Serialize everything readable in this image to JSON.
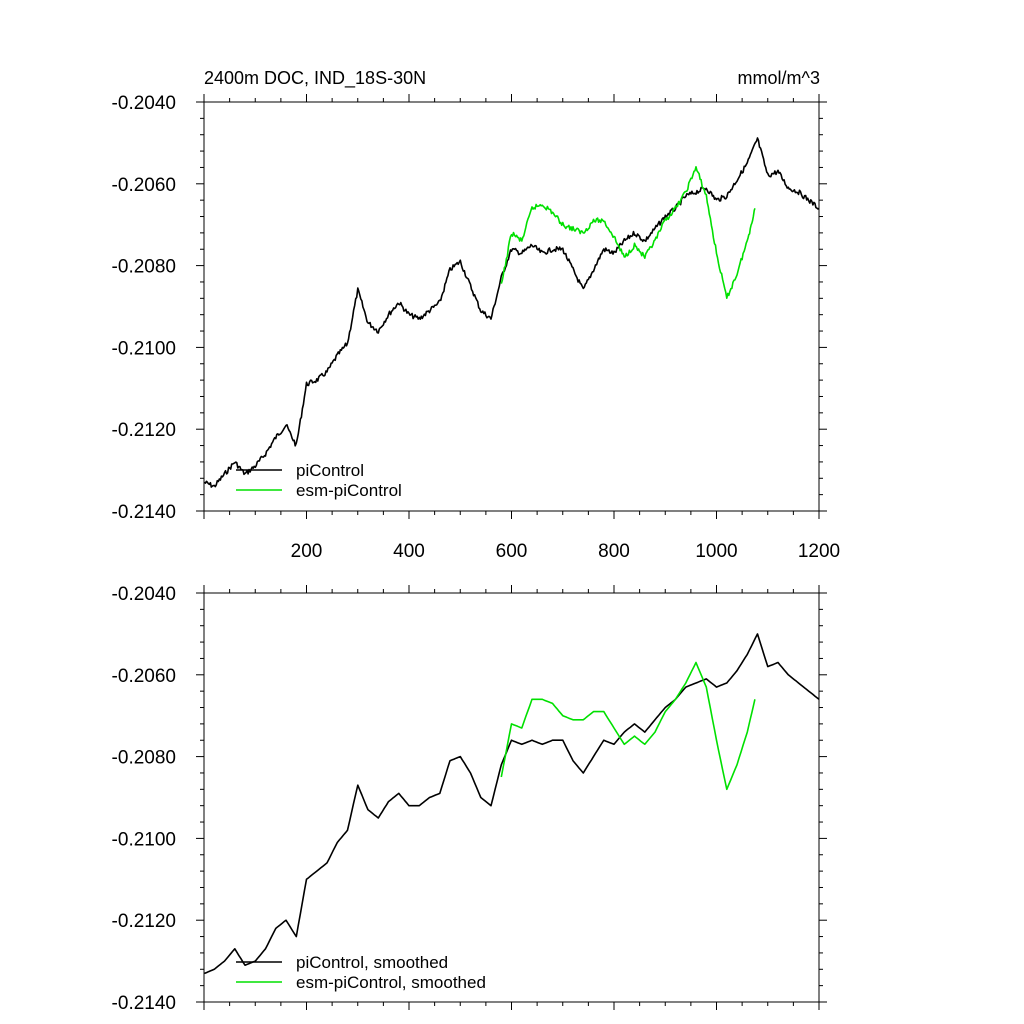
{
  "chart_data": [
    {
      "type": "line",
      "title": "2400m DOC, IND_18S-30N",
      "units": "mmol/m^3",
      "xlabel": "",
      "ylabel": "",
      "xlim": [
        0,
        1200
      ],
      "ylim": [
        -0.214,
        -0.204
      ],
      "xticks": [
        200,
        400,
        600,
        800,
        1000,
        1200
      ],
      "xtick_labels": [
        "200",
        "400",
        "600",
        "800",
        "1000",
        "1200"
      ],
      "yticks": [
        -0.214,
        -0.212,
        -0.21,
        -0.208,
        -0.206,
        -0.204
      ],
      "ytick_labels": [
        "-0.2140",
        "-0.2120",
        "-0.2100",
        "-0.2080",
        "-0.2060",
        "-0.2040"
      ],
      "grid": false,
      "legend": "bottom-left",
      "series": [
        {
          "name": "piControl",
          "color": "#000000",
          "x": [
            1,
            20,
            40,
            60,
            80,
            100,
            120,
            140,
            160,
            180,
            200,
            220,
            240,
            260,
            280,
            300,
            320,
            340,
            360,
            380,
            400,
            420,
            440,
            460,
            480,
            500,
            520,
            540,
            560,
            580,
            600,
            620,
            640,
            660,
            680,
            700,
            720,
            740,
            760,
            780,
            800,
            820,
            840,
            860,
            880,
            900,
            920,
            940,
            960,
            980,
            1000,
            1020,
            1040,
            1060,
            1080,
            1100,
            1120,
            1140,
            1160,
            1180,
            1200
          ],
          "y": [
            -0.2133,
            -0.2134,
            -0.2131,
            -0.2128,
            -0.2131,
            -0.2129,
            -0.2126,
            -0.2122,
            -0.2119,
            -0.2124,
            -0.2109,
            -0.2108,
            -0.2106,
            -0.2102,
            -0.2099,
            -0.2086,
            -0.2094,
            -0.2096,
            -0.2092,
            -0.2089,
            -0.2092,
            -0.2093,
            -0.2091,
            -0.2089,
            -0.2081,
            -0.2079,
            -0.2085,
            -0.2091,
            -0.2093,
            -0.2083,
            -0.2076,
            -0.2077,
            -0.2075,
            -0.2077,
            -0.2076,
            -0.2076,
            -0.2081,
            -0.2086,
            -0.2081,
            -0.2076,
            -0.2077,
            -0.2074,
            -0.2072,
            -0.2074,
            -0.2071,
            -0.2068,
            -0.2066,
            -0.2063,
            -0.2062,
            -0.2061,
            -0.2064,
            -0.2063,
            -0.2059,
            -0.2055,
            -0.2049,
            -0.2058,
            -0.2057,
            -0.2061,
            -0.2062,
            -0.2064,
            -0.2066
          ]
        },
        {
          "name": "esm-piControl",
          "color": "#00e000",
          "x": [
            580,
            600,
            620,
            640,
            660,
            680,
            700,
            720,
            740,
            760,
            780,
            800,
            820,
            840,
            860,
            880,
            900,
            920,
            940,
            960,
            980,
            1000,
            1020,
            1040,
            1060,
            1075
          ],
          "y": [
            -0.2085,
            -0.2072,
            -0.2074,
            -0.2066,
            -0.2065,
            -0.2067,
            -0.207,
            -0.2071,
            -0.2072,
            -0.2069,
            -0.2069,
            -0.2073,
            -0.2078,
            -0.2075,
            -0.2078,
            -0.2074,
            -0.2069,
            -0.2066,
            -0.2062,
            -0.2056,
            -0.2063,
            -0.2077,
            -0.2088,
            -0.2082,
            -0.2074,
            -0.2066
          ]
        }
      ]
    },
    {
      "type": "line",
      "title": "",
      "xlabel": "",
      "ylabel": "",
      "xlim": [
        0,
        1200
      ],
      "ylim": [
        -0.214,
        -0.204
      ],
      "yticks": [
        -0.214,
        -0.212,
        -0.21,
        -0.208,
        -0.206,
        -0.204
      ],
      "ytick_labels": [
        "-0.2140",
        "-0.2120",
        "-0.2100",
        "-0.2080",
        "-0.2060",
        "-0.2040"
      ],
      "grid": false,
      "legend": "bottom-left",
      "series": [
        {
          "name": "piControl, smoothed",
          "color": "#000000",
          "x": [
            1,
            20,
            40,
            60,
            80,
            100,
            120,
            140,
            160,
            180,
            200,
            220,
            240,
            260,
            280,
            300,
            320,
            340,
            360,
            380,
            400,
            420,
            440,
            460,
            480,
            500,
            520,
            540,
            560,
            580,
            600,
            620,
            640,
            660,
            680,
            700,
            720,
            740,
            760,
            780,
            800,
            820,
            840,
            860,
            880,
            900,
            920,
            940,
            960,
            980,
            1000,
            1020,
            1040,
            1060,
            1080,
            1100,
            1120,
            1140,
            1160,
            1180,
            1200
          ],
          "y": [
            -0.2133,
            -0.2132,
            -0.213,
            -0.2127,
            -0.2131,
            -0.213,
            -0.2127,
            -0.2122,
            -0.212,
            -0.2124,
            -0.211,
            -0.2108,
            -0.2106,
            -0.2101,
            -0.2098,
            -0.2087,
            -0.2093,
            -0.2095,
            -0.2091,
            -0.2089,
            -0.2092,
            -0.2092,
            -0.209,
            -0.2089,
            -0.2081,
            -0.208,
            -0.2084,
            -0.209,
            -0.2092,
            -0.2082,
            -0.2076,
            -0.2077,
            -0.2076,
            -0.2077,
            -0.2076,
            -0.2076,
            -0.2081,
            -0.2084,
            -0.208,
            -0.2076,
            -0.2077,
            -0.2074,
            -0.2072,
            -0.2074,
            -0.2071,
            -0.2068,
            -0.2066,
            -0.2063,
            -0.2062,
            -0.2061,
            -0.2063,
            -0.2062,
            -0.2059,
            -0.2055,
            -0.205,
            -0.2058,
            -0.2057,
            -0.206,
            -0.2062,
            -0.2064,
            -0.2066
          ]
        },
        {
          "name": "esm-piControl, smoothed",
          "color": "#00e000",
          "x": [
            580,
            600,
            620,
            640,
            660,
            680,
            700,
            720,
            740,
            760,
            780,
            800,
            820,
            840,
            860,
            880,
            900,
            920,
            940,
            960,
            980,
            1000,
            1020,
            1040,
            1060,
            1075
          ],
          "y": [
            -0.2085,
            -0.2072,
            -0.2073,
            -0.2066,
            -0.2066,
            -0.2067,
            -0.207,
            -0.2071,
            -0.2071,
            -0.2069,
            -0.2069,
            -0.2073,
            -0.2077,
            -0.2075,
            -0.2077,
            -0.2074,
            -0.2069,
            -0.2066,
            -0.2062,
            -0.2057,
            -0.2063,
            -0.2076,
            -0.2088,
            -0.2082,
            -0.2074,
            -0.2066
          ]
        }
      ]
    }
  ]
}
